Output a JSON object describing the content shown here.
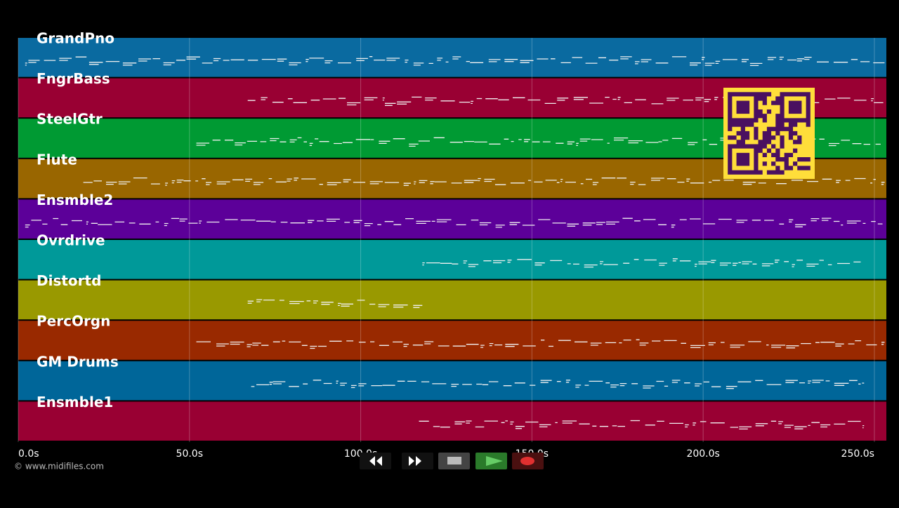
{
  "footer": "© www.midifiles.com",
  "axis": {
    "xlim": [
      0,
      253.5
    ],
    "xticks": [
      {
        "value": 0,
        "label": "0.0s"
      },
      {
        "value": 50,
        "label": "50.0s"
      },
      {
        "value": 100,
        "label": "100.0s"
      },
      {
        "value": 150,
        "label": "150.0s"
      },
      {
        "value": 200,
        "label": "200.0s"
      },
      {
        "value": 250,
        "label": "250.0s"
      }
    ]
  },
  "tracks": [
    {
      "name": "GrandPno",
      "color": "#0a6aa0",
      "start": 2,
      "end": 253
    },
    {
      "name": "FngrBass",
      "color": "#990033",
      "start": 67,
      "end": 253
    },
    {
      "name": "SteelGtr",
      "color": "#009a33",
      "start": 52,
      "end": 253
    },
    {
      "name": "Flute",
      "color": "#996600",
      "start": 19,
      "end": 253
    },
    {
      "name": "Ensmble2",
      "color": "#5c0099",
      "start": 2,
      "end": 253
    },
    {
      "name": "Ovrdrive",
      "color": "#009999",
      "start": 118,
      "end": 246
    },
    {
      "name": "Distortd",
      "color": "#999900",
      "start": 67,
      "end": 118
    },
    {
      "name": "PercOrgn",
      "color": "#992900",
      "start": 52,
      "end": 253
    },
    {
      "name": "GM Drums",
      "color": "#006699",
      "start": 68,
      "end": 247
    },
    {
      "name": "Ensmble1",
      "color": "#990033",
      "start": 117,
      "end": 247
    }
  ]
}
